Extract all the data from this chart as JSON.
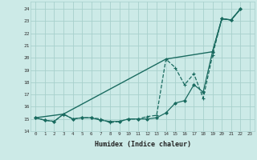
{
  "xlabel": "Humidex (Indice chaleur)",
  "bg_color": "#cceae7",
  "grid_color": "#a8d0cc",
  "line_color": "#1a6b60",
  "xlim": [
    -0.5,
    23.5
  ],
  "ylim": [
    14.0,
    24.6
  ],
  "yticks": [
    14,
    15,
    16,
    17,
    18,
    19,
    20,
    21,
    22,
    23,
    24
  ],
  "xticks": [
    0,
    1,
    2,
    3,
    4,
    5,
    6,
    7,
    8,
    9,
    10,
    11,
    12,
    13,
    14,
    15,
    16,
    17,
    18,
    19,
    20,
    21,
    22,
    23
  ],
  "series": [
    {
      "x": [
        0,
        3,
        14,
        19,
        20,
        21,
        22
      ],
      "y": [
        15.1,
        15.4,
        19.9,
        20.5,
        23.2,
        23.1,
        24.0
      ],
      "marker": null,
      "markersize": 0,
      "linewidth": 1.0,
      "linestyle": "-"
    },
    {
      "x": [
        0,
        1,
        2,
        3,
        4,
        5,
        6,
        7,
        8,
        9,
        10,
        11,
        12,
        13,
        14,
        15,
        16,
        17,
        18,
        19,
        20,
        21,
        22
      ],
      "y": [
        15.1,
        14.9,
        14.8,
        15.4,
        15.0,
        15.1,
        15.1,
        14.9,
        14.8,
        14.8,
        15.0,
        15.0,
        15.0,
        15.1,
        15.5,
        16.3,
        16.5,
        17.8,
        17.2,
        20.5,
        23.2,
        23.1,
        24.0
      ],
      "marker": "D",
      "markersize": 1.8,
      "linewidth": 0.9,
      "linestyle": "-"
    },
    {
      "x": [
        0,
        1,
        2,
        3,
        4,
        5,
        6,
        7,
        8,
        9,
        10,
        11,
        12,
        13,
        14,
        15,
        16,
        17,
        18,
        19,
        20,
        21,
        22
      ],
      "y": [
        15.1,
        14.9,
        14.8,
        15.4,
        15.0,
        15.1,
        15.1,
        15.0,
        14.7,
        14.8,
        15.0,
        15.0,
        15.2,
        15.3,
        19.9,
        19.2,
        17.8,
        18.7,
        16.7,
        20.2,
        23.2,
        23.1,
        24.0
      ],
      "marker": "+",
      "markersize": 3.5,
      "linewidth": 0.9,
      "linestyle": "--"
    }
  ]
}
